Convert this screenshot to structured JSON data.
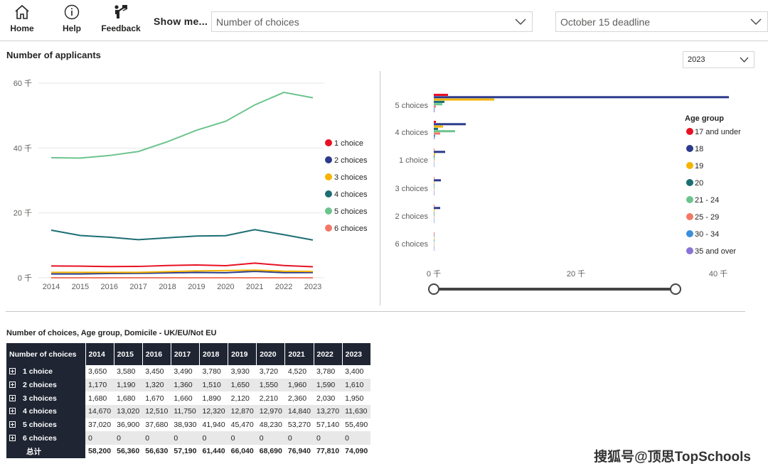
{
  "toolbar": {
    "home_label": "Home",
    "help_label": "Help",
    "feedback_label": "Feedback",
    "show_me_label": "Show me...",
    "dropdown_1_value": "Number of choices",
    "dropdown_2_value": "October 15 deadline"
  },
  "line_section": {
    "title": "Number of applicants"
  },
  "bar_section": {
    "year_value": "2023"
  },
  "chart_data": [
    {
      "type": "line",
      "x": [
        "2014",
        "2015",
        "2016",
        "2017",
        "2018",
        "2019",
        "2020",
        "2021",
        "2022",
        "2023"
      ],
      "y_ticks": [
        "0 千",
        "20 千",
        "40 千",
        "60 千"
      ],
      "ylim": [
        0,
        60000
      ],
      "grid": true,
      "legend_position": "right",
      "series": [
        {
          "name": "1 choice",
          "color": "#e81123",
          "values": [
            3650,
            3580,
            3450,
            3490,
            3780,
            3930,
            3720,
            4520,
            3780,
            3400
          ]
        },
        {
          "name": "2 choices",
          "color": "#2b3a8c",
          "values": [
            1170,
            1190,
            1320,
            1360,
            1510,
            1650,
            1550,
            1960,
            1590,
            1610
          ]
        },
        {
          "name": "3 choices",
          "color": "#f5b400",
          "values": [
            1680,
            1680,
            1670,
            1660,
            1890,
            2120,
            2210,
            2360,
            2030,
            1950
          ]
        },
        {
          "name": "4 choices",
          "color": "#1c6e74",
          "values": [
            14670,
            13020,
            12510,
            11750,
            12320,
            12870,
            12970,
            14840,
            13270,
            11630
          ]
        },
        {
          "name": "5 choices",
          "color": "#6cc48d",
          "values": [
            37020,
            36900,
            37680,
            38930,
            41940,
            45470,
            48230,
            53270,
            57140,
            55490
          ]
        },
        {
          "name": "6 choices",
          "color": "#f27866",
          "values": [
            0,
            0,
            0,
            0,
            0,
            0,
            0,
            0,
            0,
            0
          ]
        }
      ]
    },
    {
      "type": "bar",
      "orientation": "horizontal",
      "categories": [
        "5 choices",
        "4 choices",
        "1 choice",
        "3 choices",
        "2 choices",
        "6 choices"
      ],
      "x_ticks": [
        "0 千",
        "20 千",
        "40 千"
      ],
      "xlim": [
        0,
        50000
      ],
      "legend_title": "Age group",
      "legend_position": "right",
      "series": [
        {
          "name": "17 and under",
          "color": "#e81123",
          "values": [
            2000,
            300,
            0,
            0,
            0,
            0
          ]
        },
        {
          "name": "18",
          "color": "#2b3a8c",
          "values": [
            41500,
            4500,
            1600,
            1000,
            900,
            0
          ]
        },
        {
          "name": "19",
          "color": "#f5b400",
          "values": [
            8500,
            1300,
            200,
            100,
            100,
            0
          ]
        },
        {
          "name": "20",
          "color": "#1c6e74",
          "values": [
            1500,
            600,
            100,
            0,
            0,
            0
          ]
        },
        {
          "name": "21 - 24",
          "color": "#6cc48d",
          "values": [
            1200,
            3000,
            100,
            100,
            100,
            0
          ]
        },
        {
          "name": "25 - 29",
          "color": "#f27866",
          "values": [
            300,
            900,
            0,
            0,
            0,
            0
          ]
        },
        {
          "name": "30 - 34",
          "color": "#3a8fd9",
          "values": [
            100,
            200,
            0,
            0,
            0,
            0
          ]
        },
        {
          "name": "35 and over",
          "color": "#8a73d6",
          "values": [
            100,
            100,
            0,
            0,
            0,
            0
          ]
        }
      ]
    }
  ],
  "table": {
    "title": "Number of choices, Age group, Domicile - UK/EU/Not EU",
    "header": [
      "Number of choices",
      "2014",
      "2015",
      "2016",
      "2017",
      "2018",
      "2019",
      "2020",
      "2021",
      "2022",
      "2023"
    ],
    "rows": [
      {
        "label": "1 choice",
        "values": [
          "3,650",
          "3,580",
          "3,450",
          "3,490",
          "3,780",
          "3,930",
          "3,720",
          "4,520",
          "3,780",
          "3,400"
        ]
      },
      {
        "label": "2 choices",
        "values": [
          "1,170",
          "1,190",
          "1,320",
          "1,360",
          "1,510",
          "1,650",
          "1,550",
          "1,960",
          "1,590",
          "1,610"
        ]
      },
      {
        "label": "3 choices",
        "values": [
          "1,680",
          "1,680",
          "1,670",
          "1,660",
          "1,890",
          "2,120",
          "2,210",
          "2,360",
          "2,030",
          "1,950"
        ]
      },
      {
        "label": "4 choices",
        "values": [
          "14,670",
          "13,020",
          "12,510",
          "11,750",
          "12,320",
          "12,870",
          "12,970",
          "14,840",
          "13,270",
          "11,630"
        ]
      },
      {
        "label": "5 choices",
        "values": [
          "37,020",
          "36,900",
          "37,680",
          "38,930",
          "41,940",
          "45,470",
          "48,230",
          "53,270",
          "57,140",
          "55,490"
        ]
      },
      {
        "label": "6 choices",
        "values": [
          "0",
          "0",
          "0",
          "0",
          "0",
          "0",
          "0",
          "0",
          "0",
          "0"
        ]
      }
    ],
    "total": {
      "label": "总计",
      "values": [
        "58,200",
        "56,360",
        "56,630",
        "57,190",
        "61,440",
        "66,040",
        "68,690",
        "76,940",
        "77,810",
        "74,090"
      ]
    }
  },
  "watermark": "搜狐号@顶思TopSchools"
}
